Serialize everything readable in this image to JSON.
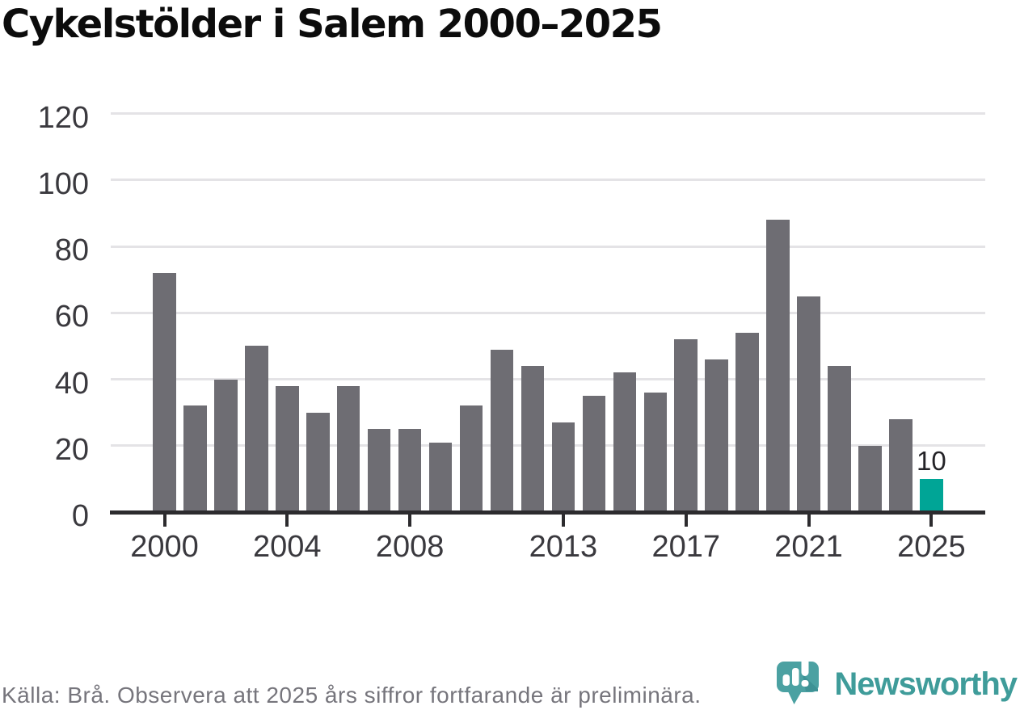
{
  "title": "Cykelstölder i Salem 2000–2025",
  "footer": {
    "source": "Källa: Brå. Observera att 2025 års siffror fortfarande är preliminära."
  },
  "branding": {
    "wordmark": "Newsworthy",
    "icon": "newsworthy-chart-bubble-icon"
  },
  "colors": {
    "bar_gray": "#6e6d73",
    "highlight_teal": "#00a596",
    "axis": "#2c2b2e",
    "gridline": "#e4e3e6",
    "tick_label": "#3a393e",
    "value_label": "#242327",
    "footer_text": "#76757c",
    "logo_bubble": "#4ba1a2",
    "logo_shadow": "#3e9295",
    "wordmark_teal": "#3f9c9a",
    "background": "#ffffff"
  },
  "chart_data": {
    "type": "bar",
    "title": "Cykelstölder i Salem 2000–2025",
    "xlabel": "",
    "ylabel": "",
    "x": [
      2000,
      2001,
      2002,
      2003,
      2004,
      2005,
      2006,
      2007,
      2008,
      2009,
      2010,
      2011,
      2012,
      2013,
      2014,
      2015,
      2016,
      2017,
      2018,
      2019,
      2020,
      2021,
      2022,
      2023,
      2024,
      2025
    ],
    "values": [
      72,
      32,
      40,
      50,
      38,
      30,
      38,
      25,
      25,
      21,
      32,
      49,
      44,
      27,
      35,
      42,
      36,
      52,
      46,
      54,
      88,
      65,
      44,
      20,
      28,
      10
    ],
    "bar_color": "#6e6d73",
    "highlight": {
      "year": 2025,
      "value": 10,
      "label": "10",
      "color": "#00a596"
    },
    "ylim": [
      0,
      120
    ],
    "yticks": [
      0,
      20,
      40,
      60,
      80,
      100,
      120
    ],
    "xtick_labels": [
      2000,
      2004,
      2008,
      2013,
      2017,
      2021,
      2025
    ],
    "grid": "horizontal",
    "legend": "none"
  }
}
